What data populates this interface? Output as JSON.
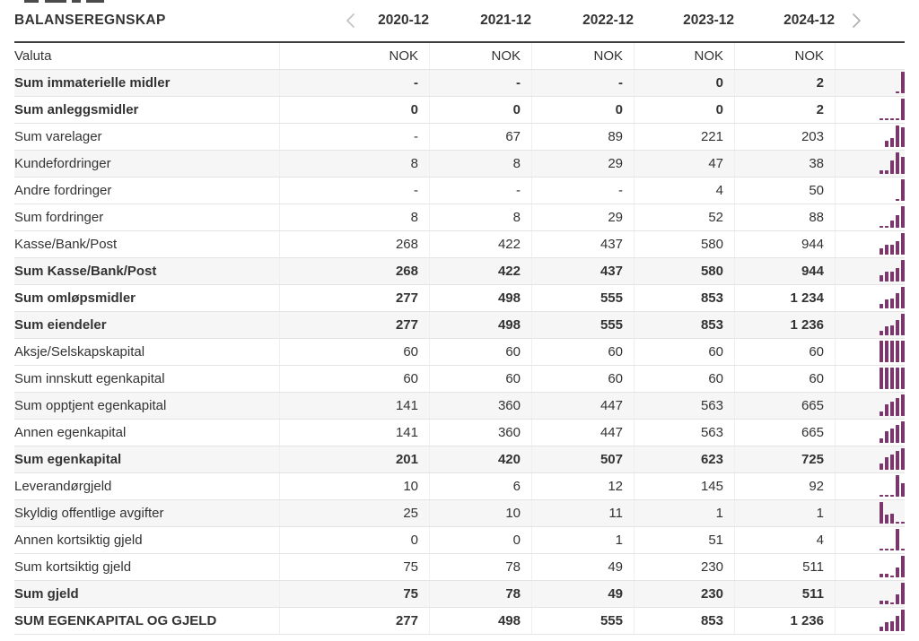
{
  "header": {
    "title": "BALANSEREGNSKAP",
    "columns": [
      "2020-12",
      "2021-12",
      "2022-12",
      "2023-12",
      "2024-12"
    ],
    "prev_icon": "chevron-left-icon",
    "next_icon": "chevron-right-icon"
  },
  "colors": {
    "sparkline_bar": "#7b376b",
    "row_stripe": "#f6f6f6",
    "header_rule": "#3d3d3d",
    "row_border": "#e4e4e4",
    "column_border": "#efefef",
    "text": "#333333",
    "chevron_left": "#c4c4c4",
    "chevron_right": "#b2b2b2"
  },
  "rows": [
    {
      "label": "Valuta",
      "bold": false,
      "shaded": false,
      "values": [
        "NOK",
        "NOK",
        "NOK",
        "NOK",
        "NOK"
      ],
      "numeric": null
    },
    {
      "label": "Sum immaterielle midler",
      "bold": true,
      "shaded": true,
      "values": [
        "-",
        "-",
        "-",
        "0",
        "2"
      ],
      "numeric": [
        null,
        null,
        null,
        0,
        2
      ]
    },
    {
      "label": "Sum anleggsmidler",
      "bold": true,
      "shaded": false,
      "values": [
        "0",
        "0",
        "0",
        "0",
        "2"
      ],
      "numeric": [
        0,
        0,
        0,
        0,
        2
      ]
    },
    {
      "label": "Sum varelager",
      "bold": false,
      "shaded": false,
      "values": [
        "-",
        "67",
        "89",
        "221",
        "203"
      ],
      "numeric": [
        null,
        67,
        89,
        221,
        203
      ]
    },
    {
      "label": "Kundefordringer",
      "bold": false,
      "shaded": true,
      "values": [
        "8",
        "8",
        "29",
        "47",
        "38"
      ],
      "numeric": [
        8,
        8,
        29,
        47,
        38
      ]
    },
    {
      "label": "Andre fordringer",
      "bold": false,
      "shaded": false,
      "values": [
        "-",
        "-",
        "-",
        "4",
        "50"
      ],
      "numeric": [
        null,
        null,
        null,
        4,
        50
      ]
    },
    {
      "label": "Sum fordringer",
      "bold": false,
      "shaded": false,
      "values": [
        "8",
        "8",
        "29",
        "52",
        "88"
      ],
      "numeric": [
        8,
        8,
        29,
        52,
        88
      ]
    },
    {
      "label": "Kasse/Bank/Post",
      "bold": false,
      "shaded": false,
      "values": [
        "268",
        "422",
        "437",
        "580",
        "944"
      ],
      "numeric": [
        268,
        422,
        437,
        580,
        944
      ]
    },
    {
      "label": "Sum Kasse/Bank/Post",
      "bold": true,
      "shaded": true,
      "values": [
        "268",
        "422",
        "437",
        "580",
        "944"
      ],
      "numeric": [
        268,
        422,
        437,
        580,
        944
      ]
    },
    {
      "label": "Sum omløpsmidler",
      "bold": true,
      "shaded": false,
      "values": [
        "277",
        "498",
        "555",
        "853",
        "1 234"
      ],
      "numeric": [
        277,
        498,
        555,
        853,
        1234
      ]
    },
    {
      "label": "Sum eiendeler",
      "bold": true,
      "shaded": true,
      "values": [
        "277",
        "498",
        "555",
        "853",
        "1 236"
      ],
      "numeric": [
        277,
        498,
        555,
        853,
        1236
      ]
    },
    {
      "label": "Aksje/Selskapskapital",
      "bold": false,
      "shaded": false,
      "values": [
        "60",
        "60",
        "60",
        "60",
        "60"
      ],
      "numeric": [
        60,
        60,
        60,
        60,
        60
      ]
    },
    {
      "label": "Sum innskutt egenkapital",
      "bold": false,
      "shaded": false,
      "values": [
        "60",
        "60",
        "60",
        "60",
        "60"
      ],
      "numeric": [
        60,
        60,
        60,
        60,
        60
      ]
    },
    {
      "label": "Sum opptjent egenkapital",
      "bold": false,
      "shaded": true,
      "values": [
        "141",
        "360",
        "447",
        "563",
        "665"
      ],
      "numeric": [
        141,
        360,
        447,
        563,
        665
      ]
    },
    {
      "label": "Annen egenkapital",
      "bold": false,
      "shaded": false,
      "values": [
        "141",
        "360",
        "447",
        "563",
        "665"
      ],
      "numeric": [
        141,
        360,
        447,
        563,
        665
      ]
    },
    {
      "label": "Sum egenkapital",
      "bold": true,
      "shaded": true,
      "values": [
        "201",
        "420",
        "507",
        "623",
        "725"
      ],
      "numeric": [
        201,
        420,
        507,
        623,
        725
      ]
    },
    {
      "label": "Leverandørgjeld",
      "bold": false,
      "shaded": false,
      "values": [
        "10",
        "6",
        "12",
        "145",
        "92"
      ],
      "numeric": [
        10,
        6,
        12,
        145,
        92
      ]
    },
    {
      "label": "Skyldig offentlige avgifter",
      "bold": false,
      "shaded": true,
      "values": [
        "25",
        "10",
        "11",
        "1",
        "1"
      ],
      "numeric": [
        25,
        10,
        11,
        1,
        1
      ]
    },
    {
      "label": "Annen kortsiktig gjeld",
      "bold": false,
      "shaded": false,
      "values": [
        "0",
        "0",
        "1",
        "51",
        "4"
      ],
      "numeric": [
        0,
        0,
        1,
        51,
        4
      ]
    },
    {
      "label": "Sum kortsiktig gjeld",
      "bold": false,
      "shaded": false,
      "values": [
        "75",
        "78",
        "49",
        "230",
        "511"
      ],
      "numeric": [
        75,
        78,
        49,
        230,
        511
      ]
    },
    {
      "label": "Sum gjeld",
      "bold": true,
      "shaded": true,
      "values": [
        "75",
        "78",
        "49",
        "230",
        "511"
      ],
      "numeric": [
        75,
        78,
        49,
        230,
        511
      ]
    },
    {
      "label": "SUM EGENKAPITAL OG GJELD",
      "bold": true,
      "shaded": false,
      "values": [
        "277",
        "498",
        "555",
        "853",
        "1 236"
      ],
      "numeric": [
        277,
        498,
        555,
        853,
        1236
      ]
    }
  ]
}
